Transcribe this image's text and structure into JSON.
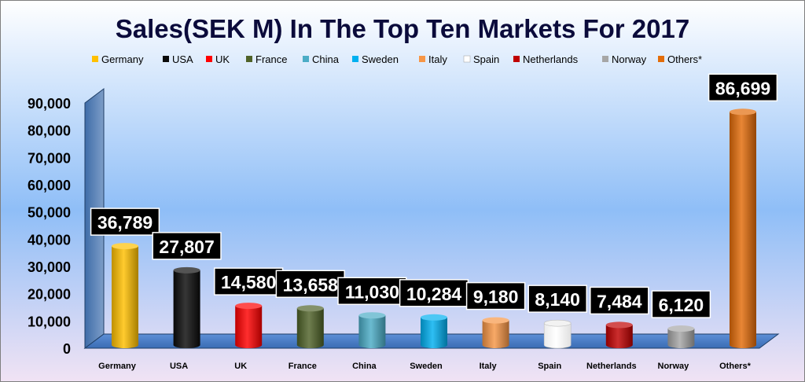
{
  "chart_data": {
    "type": "bar",
    "title": "Sales(SEK M) In The Top Ten Markets For 2017",
    "categories": [
      "Germany",
      "USA",
      "UK",
      "France",
      "China",
      "Sweden",
      "Italy",
      "Spain",
      "Netherlands",
      "Norway",
      "Others*"
    ],
    "values": [
      36789,
      27807,
      14580,
      13658,
      11030,
      10284,
      9180,
      8140,
      7484,
      6120,
      86699
    ],
    "value_labels": [
      "36,789",
      "27,807",
      "14,580",
      "13,658",
      "11,030",
      "10,284",
      "9,180",
      "8,140",
      "7,484",
      "6,120",
      "86,699"
    ],
    "colors": [
      "#FFC000",
      "#0A0A0A",
      "#FF0000",
      "#4F6228",
      "#4BACC6",
      "#00B0F0",
      "#F79646",
      "#FFFFFF",
      "#C00000",
      "#A6A6A6",
      "#E36C09"
    ],
    "legend": [
      "Germany",
      "USA",
      "UK",
      "France",
      "China",
      "Sweden",
      "Italy",
      "Spain",
      "Netherlands",
      "Norway",
      "Others*"
    ],
    "legend_position": "top",
    "y_ticks": [
      "0",
      "10,000",
      "20,000",
      "30,000",
      "40,000",
      "50,000",
      "60,000",
      "70,000",
      "80,000",
      "90,000"
    ],
    "ylim": [
      0,
      90000
    ],
    "grid": false,
    "xlabel": "",
    "ylabel": ""
  }
}
